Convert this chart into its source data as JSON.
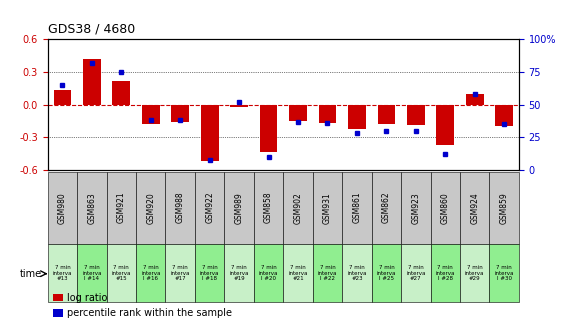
{
  "title": "GDS38 / 4680",
  "samples": [
    "GSM980",
    "GSM863",
    "GSM921",
    "GSM920",
    "GSM988",
    "GSM922",
    "GSM989",
    "GSM858",
    "GSM902",
    "GSM931",
    "GSM861",
    "GSM862",
    "GSM923",
    "GSM860",
    "GSM924",
    "GSM859"
  ],
  "intervals": [
    "#13",
    "I #14",
    "#15",
    "I #16",
    "#17",
    "I #18",
    "#19",
    "I #20",
    "#21",
    "I #22",
    "#23",
    "I #25",
    "#27",
    "I #28",
    "#29",
    "I #30"
  ],
  "log_ratio": [
    0.13,
    0.42,
    0.22,
    -0.18,
    -0.16,
    -0.52,
    -0.02,
    -0.43,
    -0.15,
    -0.17,
    -0.22,
    -0.18,
    -0.19,
    -0.37,
    0.1,
    -0.2
  ],
  "percentile": [
    65,
    82,
    75,
    38,
    38,
    8,
    52,
    10,
    37,
    36,
    28,
    30,
    30,
    12,
    58,
    35
  ],
  "ylim_left": [
    -0.6,
    0.6
  ],
  "ylim_right": [
    0,
    100
  ],
  "yticks_left": [
    -0.6,
    -0.3,
    0.0,
    0.3,
    0.6
  ],
  "yticks_right": [
    0,
    25,
    50,
    75,
    100
  ],
  "bar_color": "#cc0000",
  "dot_color": "#0000cc",
  "zero_line_color": "#cc0000",
  "grid_color": "#000000",
  "bg_color": "#ffffff",
  "cell_gray": "#c8c8c8",
  "cell_green_light": "#c8f0c8",
  "cell_green_dark": "#90ee90",
  "bar_width": 0.6,
  "legend_items": [
    {
      "label": "log ratio",
      "color": "#cc0000"
    },
    {
      "label": "percentile rank within the sample",
      "color": "#0000cc"
    }
  ]
}
